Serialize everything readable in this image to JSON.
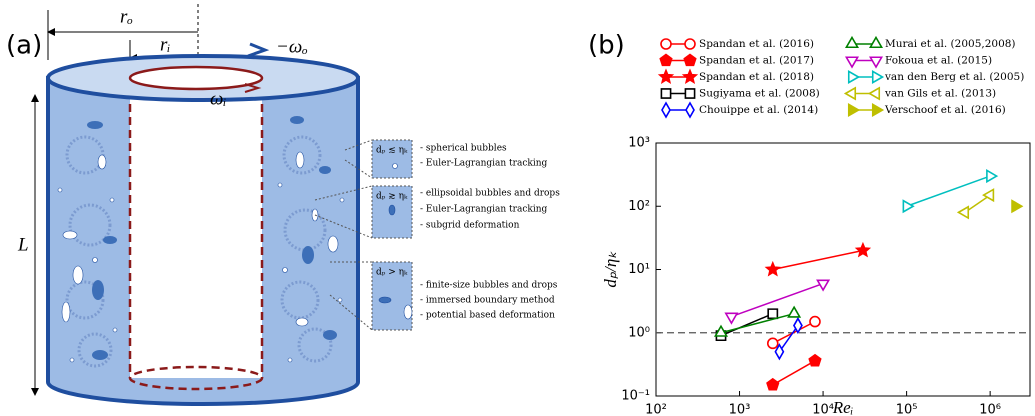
{
  "panel_a": {
    "label": "(a)",
    "outer_radius": "rₒ",
    "inner_radius": "rᵢ",
    "outer_rotation": "−ωₒ",
    "inner_rotation": "ωᵢ",
    "height": "L",
    "annotations": [
      {
        "condition": "dₚ ≲ ηₖ",
        "items": [
          "- spherical bubbles",
          "- Euler-Lagrangian tracking"
        ]
      },
      {
        "condition": "dₚ ≳ ηₖ",
        "items": [
          "- ellipsoidal bubbles and drops",
          "- Euler-Lagrangian tracking",
          "- subgrid deformation"
        ]
      },
      {
        "condition": "dₚ > ηₖ",
        "items": [
          "- finite-size bubbles and drops",
          "- immersed boundary method",
          "- potential based deformation"
        ]
      }
    ]
  },
  "chart_data": {
    "type": "scatter",
    "panel_label": "(b)",
    "x_label": "Reᵢ",
    "y_label": "dₚ/ηₖ",
    "log_x": true,
    "log_y": true,
    "xlim": [
      100,
      3000000
    ],
    "ylim": [
      0.1,
      1000
    ],
    "xticks": [
      {
        "value": 100,
        "label": "10²"
      },
      {
        "value": 1000,
        "label": "10³"
      },
      {
        "value": 10000,
        "label": "10⁴"
      },
      {
        "value": 100000,
        "label": "10⁵"
      },
      {
        "value": 1000000,
        "label": "10⁶"
      }
    ],
    "yticks": [
      {
        "value": 0.1,
        "label": "10⁻¹"
      },
      {
        "value": 1,
        "label": "10⁰"
      },
      {
        "value": 10,
        "label": "10¹"
      },
      {
        "value": 100,
        "label": "10²"
      },
      {
        "value": 1000,
        "label": "10³"
      }
    ],
    "hline": 1,
    "series": [
      {
        "name": "Spandan et al. (2016)",
        "color": "#ff0000",
        "marker": "circle",
        "filled": false,
        "x": [
          2500,
          8000
        ],
        "values": [
          0.68,
          1.5
        ]
      },
      {
        "name": "Spandan et al. (2017)",
        "color": "#ff0000",
        "marker": "pentagon",
        "filled": true,
        "x": [
          2500,
          8000
        ],
        "values": [
          0.15,
          0.36
        ]
      },
      {
        "name": "Spandan et al. (2018)",
        "color": "#ff0000",
        "marker": "star",
        "filled": true,
        "x": [
          2500,
          30000
        ],
        "values": [
          10,
          20
        ]
      },
      {
        "name": "Sugiyama et al. (2008)",
        "color": "#000000",
        "marker": "square",
        "filled": false,
        "x": [
          600,
          2500
        ],
        "values": [
          0.9,
          2
        ]
      },
      {
        "name": "Chouippe et al. (2014)",
        "color": "#0000ff",
        "marker": "diamond",
        "filled": false,
        "x": [
          3000,
          5000
        ],
        "values": [
          0.5,
          1.3
        ]
      },
      {
        "name": "Murai et al. (2005,2008)",
        "color": "#008000",
        "marker": "triangle-up",
        "filled": false,
        "x": [
          600,
          4500
        ],
        "values": [
          1.0,
          2.0
        ]
      },
      {
        "name": "Fokoua et al. (2015)",
        "color": "#bf00bf",
        "marker": "triangle-down",
        "filled": false,
        "x": [
          800,
          10000
        ],
        "values": [
          1.8,
          6
        ]
      },
      {
        "name": "van den Berg et al. (2005)",
        "color": "#00bfbf",
        "marker": "triangle-right",
        "filled": false,
        "x": [
          100000,
          1000000
        ],
        "values": [
          100,
          300
        ]
      },
      {
        "name": "van Gils et al. (2013)",
        "color": "#bfbf00",
        "marker": "triangle-left",
        "filled": false,
        "x": [
          500000,
          1000000
        ],
        "values": [
          80,
          150
        ]
      },
      {
        "name": "Verschoof et al. (2016)",
        "color": "#bfbf00",
        "marker": "triangle-right",
        "filled": true,
        "x": [
          2000000
        ],
        "values": [
          100
        ]
      }
    ]
  }
}
